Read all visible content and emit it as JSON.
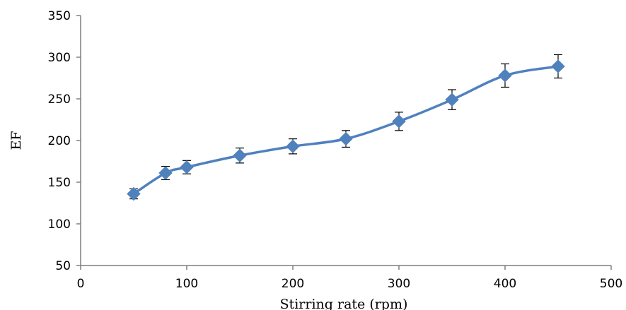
{
  "chart_data": {
    "type": "line",
    "title": "",
    "xlabel": "Stirring rate (rpm)",
    "ylabel": "EF",
    "xlim": [
      0,
      500
    ],
    "ylim": [
      50,
      350
    ],
    "xticks": [
      0,
      100,
      200,
      300,
      400,
      500
    ],
    "yticks": [
      50,
      100,
      150,
      200,
      250,
      300,
      350
    ],
    "x_tick_labels": [
      "0",
      "100",
      "200",
      "300",
      "400",
      "500"
    ],
    "y_tick_labels": [
      "50",
      "100",
      "150",
      "200",
      "250",
      "300",
      "350"
    ],
    "grid": false,
    "legend": "none",
    "smoothed": true,
    "marker": "diamond",
    "series": [
      {
        "color": "#4f81bd",
        "x": [
          50,
          80,
          100,
          150,
          200,
          250,
          300,
          350,
          400,
          450
        ],
        "y": [
          136,
          161,
          168,
          182,
          193,
          202,
          223,
          249,
          278,
          289
        ],
        "error": [
          6,
          8,
          8,
          9,
          9,
          10,
          11,
          12,
          14,
          14
        ]
      }
    ]
  }
}
